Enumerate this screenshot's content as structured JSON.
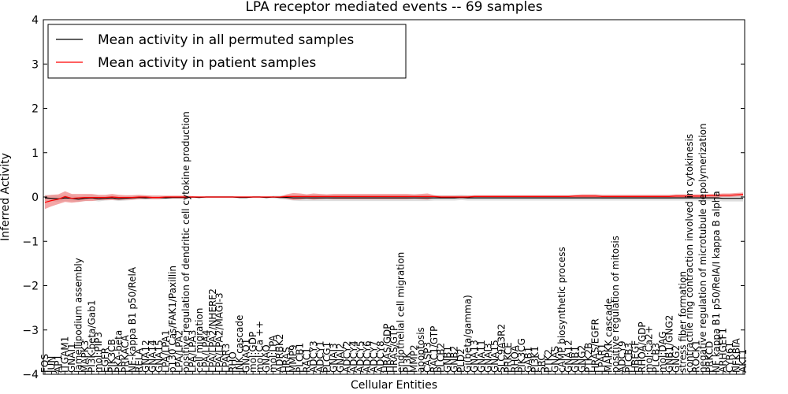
{
  "chart_data": {
    "type": "line",
    "title": "LPA receptor mediated events -- 69 samples",
    "xlabel": "Cellular Entities",
    "ylabel": "Inferred Activity",
    "ylim": [
      -4,
      4
    ],
    "yticks": [
      "4",
      "3",
      "2",
      "1",
      "0",
      "−1",
      "−2",
      "−3",
      "−4"
    ],
    "grid": false,
    "legend_position": "top-left",
    "categories": [
      "FOS",
      "JUN",
      "AP1",
      "ITGAM1",
      "GNAI1",
      "lamellipodium assembly",
      "MAPK3",
      "PI3K-beta/Gab1",
      "mol:PIP3",
      "EGFR",
      "PIK3CB",
      "PKA-beta",
      "PRKACA",
      "NF-kappa B1 p50/RelA",
      "RELA",
      "GNA12",
      "GNA14",
      "GNA15",
      "LPA/LPA1",
      "p130 Cas/FAK1/Paxillin",
      "LPA/LPA2",
      "positive regulation of dendritic cell cytokine production",
      "LPA/LPA3",
      "cell migration",
      "LPA/LPA4",
      "LPA/LPA2/NHERF2",
      "LPA/LPA2/MAGI-3",
      "LPAR3",
      "RHO",
      "JNK cascade",
      "GNAO1",
      "mol:GDP",
      "mol:Ca ++",
      "GNAQ",
      "mol:LPA",
      "ADRBK2",
      "HRAS",
      "MMP9",
      "PLCB1",
      "RAC1",
      "ADCY3",
      "ADCY1",
      "PLCG1",
      "GNAI3",
      "GNAI2",
      "ADCY2",
      "ADCY4",
      "ADCY5",
      "ADCY6",
      "ADCY7",
      "ADCY8",
      "HRAS/GDP",
      "HRAS/GTP",
      "endothelial cell migration",
      "PI3K",
      "MMP2",
      "apoptosis",
      "CASP3",
      "RAC1/GTP",
      "PLCB2",
      "GNB1",
      "GNB2",
      "PLD2",
      "Gi(beta/gamma)",
      "GNA13",
      "GNA11",
      "GNAI3",
      "GNA15",
      "SLC9A3R2",
      "PRKCE",
      "RHOA",
      "PIK3CG",
      "GAB1",
      "PI3K1",
      "SRC",
      "PTK2",
      "GNAS",
      "cAMP biosynthetic process",
      "GNA12",
      "GNB1",
      "GNG2",
      "PTK2B",
      "HRAS/EGFR",
      "LPAR1",
      "MAPKK cascade",
      "positive regulation of mitosis",
      "ADCY9",
      "PLCB3",
      "HBEGF",
      "RHOA/GDP",
      "mol:Ca2+",
      "PLCB3",
      "mol:DAG",
      "GNB1/GNG2",
      "GNG2",
      "stress fiber formation",
      "contractile ring contraction involved in cytokinesis",
      "ROCK1",
      "negative regulation of microtubule depolymerization",
      "PRKCD",
      "NF kappa B1 p50/RelA/I kappa B alpha",
      "ARHGEF1",
      "CYR61",
      "NFKBIA",
      "AKT1"
    ],
    "series": [
      {
        "name": "Mean activity in all permuted samples",
        "color": "#000000",
        "values": [
          -0.02,
          -0.03,
          -0.04,
          -0.02,
          -0.03,
          -0.05,
          -0.03,
          -0.02,
          -0.04,
          -0.03,
          -0.02,
          -0.04,
          -0.03,
          -0.02,
          -0.01,
          -0.02,
          -0.01,
          -0.01,
          -0.02,
          -0.01,
          -0.01,
          -0.01,
          0.0,
          -0.01,
          0.0,
          0.0,
          0.0,
          0.0,
          0.0,
          -0.01,
          -0.01,
          0.0,
          0.0,
          -0.01,
          0.0,
          -0.01,
          -0.01,
          -0.02,
          -0.02,
          -0.02,
          -0.02,
          -0.02,
          -0.02,
          -0.02,
          -0.02,
          -0.02,
          -0.02,
          -0.02,
          -0.02,
          -0.02,
          -0.02,
          -0.02,
          -0.02,
          -0.02,
          -0.02,
          -0.02,
          -0.02,
          -0.02,
          -0.02,
          -0.02,
          -0.02,
          -0.02,
          -0.01,
          -0.02,
          -0.02,
          -0.02,
          -0.02,
          -0.02,
          -0.02,
          -0.02,
          -0.02,
          -0.02,
          -0.02,
          -0.02,
          -0.02,
          -0.02,
          -0.02,
          -0.02,
          -0.02,
          -0.02,
          -0.02,
          -0.02,
          -0.02,
          -0.02,
          -0.02,
          -0.02,
          -0.02,
          -0.02,
          -0.02,
          -0.02,
          -0.02,
          -0.02,
          -0.02,
          -0.02,
          -0.02,
          -0.02,
          -0.02,
          -0.02,
          -0.02,
          -0.02,
          -0.02,
          -0.03,
          -0.03,
          -0.03,
          -0.03
        ]
      },
      {
        "name": "Mean activity in patient samples",
        "color": "#ff0000",
        "values": [
          -0.12,
          -0.08,
          -0.05,
          0.01,
          -0.03,
          -0.02,
          -0.01,
          -0.01,
          -0.01,
          -0.01,
          0.0,
          -0.01,
          -0.01,
          -0.01,
          0.0,
          0.0,
          -0.01,
          -0.01,
          0.0,
          0.0,
          0.0,
          0.0,
          0.0,
          0.0,
          0.0,
          0.0,
          0.0,
          0.0,
          0.0,
          0.0,
          0.0,
          0.0,
          0.0,
          0.0,
          0.0,
          0.0,
          0.01,
          0.01,
          0.01,
          0.01,
          0.01,
          0.01,
          0.01,
          0.01,
          0.01,
          0.01,
          0.01,
          0.01,
          0.01,
          0.01,
          0.01,
          0.01,
          0.01,
          0.01,
          0.01,
          0.01,
          0.01,
          0.01,
          0.01,
          0.0,
          0.0,
          0.0,
          0.0,
          0.0,
          0.01,
          0.01,
          0.01,
          0.01,
          0.01,
          0.01,
          0.01,
          0.01,
          0.01,
          0.01,
          0.01,
          0.01,
          0.01,
          0.01,
          0.01,
          0.02,
          0.02,
          0.02,
          0.02,
          0.01,
          0.01,
          0.01,
          0.01,
          0.01,
          0.01,
          0.01,
          0.01,
          0.01,
          0.01,
          0.01,
          0.02,
          0.02,
          0.02,
          0.02,
          0.02,
          0.03,
          0.03,
          0.04,
          0.04,
          0.05,
          0.06
        ]
      }
    ],
    "bands": [
      {
        "series": "Mean activity in all permuted samples",
        "color": "#cccccc",
        "half_width": [
          0.07,
          0.07,
          0.07,
          0.07,
          0.07,
          0.06,
          0.06,
          0.06,
          0.06,
          0.05,
          0.05,
          0.05,
          0.05,
          0.05,
          0.04,
          0.04,
          0.04,
          0.04,
          0.03,
          0.03,
          0.03,
          0.03,
          0.02,
          0.02,
          0.02,
          0.02,
          0.02,
          0.02,
          0.02,
          0.02,
          0.02,
          0.02,
          0.02,
          0.02,
          0.03,
          0.04,
          0.05,
          0.06,
          0.07,
          0.07,
          0.07,
          0.07,
          0.07,
          0.07,
          0.07,
          0.07,
          0.07,
          0.07,
          0.07,
          0.07,
          0.07,
          0.07,
          0.07,
          0.07,
          0.07,
          0.07,
          0.07,
          0.07,
          0.06,
          0.06,
          0.06,
          0.06,
          0.06,
          0.06,
          0.06,
          0.06,
          0.06,
          0.06,
          0.06,
          0.06,
          0.06,
          0.06,
          0.06,
          0.06,
          0.06,
          0.06,
          0.06,
          0.06,
          0.06,
          0.06,
          0.06,
          0.06,
          0.06,
          0.06,
          0.06,
          0.06,
          0.06,
          0.06,
          0.06,
          0.06,
          0.06,
          0.06,
          0.06,
          0.06,
          0.06,
          0.06,
          0.06,
          0.06,
          0.06,
          0.06,
          0.06,
          0.07,
          0.07,
          0.07,
          0.07
        ]
      },
      {
        "series": "Mean activity in patient samples",
        "color": "#f08080",
        "half_width": [
          0.15,
          0.13,
          0.11,
          0.12,
          0.1,
          0.09,
          0.08,
          0.08,
          0.06,
          0.06,
          0.07,
          0.06,
          0.05,
          0.05,
          0.05,
          0.04,
          0.04,
          0.04,
          0.03,
          0.03,
          0.03,
          0.03,
          0.02,
          0.01,
          0.01,
          0.01,
          0.01,
          0.01,
          0.01,
          0.01,
          0.01,
          0.01,
          0.01,
          0.01,
          0.01,
          0.01,
          0.05,
          0.08,
          0.07,
          0.05,
          0.07,
          0.06,
          0.05,
          0.06,
          0.06,
          0.06,
          0.06,
          0.06,
          0.06,
          0.06,
          0.06,
          0.06,
          0.06,
          0.06,
          0.06,
          0.05,
          0.06,
          0.07,
          0.03,
          0.03,
          0.03,
          0.03,
          0.03,
          0.03,
          0.03,
          0.03,
          0.03,
          0.03,
          0.03,
          0.03,
          0.03,
          0.03,
          0.03,
          0.03,
          0.03,
          0.03,
          0.03,
          0.03,
          0.03,
          0.03,
          0.04,
          0.04,
          0.04,
          0.04,
          0.04,
          0.04,
          0.04,
          0.04,
          0.04,
          0.04,
          0.04,
          0.04,
          0.04,
          0.04,
          0.04,
          0.04,
          0.04,
          0.04,
          0.04,
          0.04,
          0.04,
          0.04,
          0.04,
          0.04,
          0.04
        ]
      }
    ]
  }
}
